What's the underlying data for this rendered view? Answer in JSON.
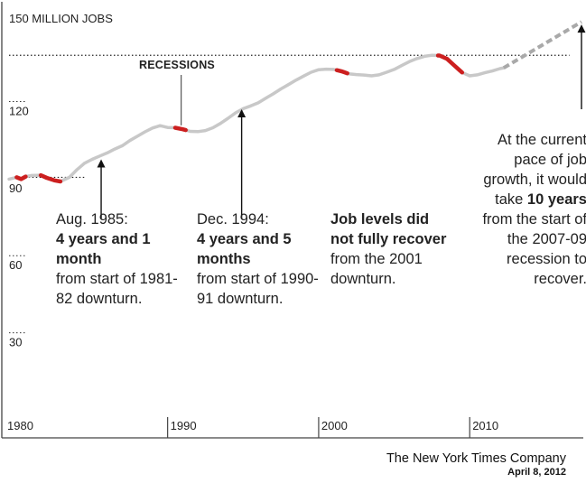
{
  "chart_data": {
    "type": "line",
    "title": "150 MILLION JOBS",
    "xlabel": "",
    "ylabel": "",
    "xlim": [
      1979.5,
      2017.4
    ],
    "ylim": [
      0,
      156
    ],
    "x_ticks": [
      1980,
      1990,
      2000,
      2010
    ],
    "x_tick_labels": [
      "1980",
      "1990",
      "2000",
      "2010"
    ],
    "y_ticks": [
      30,
      60,
      90,
      120
    ],
    "y_tick_labels": [
      "30",
      "60",
      "90",
      "120"
    ],
    "y_top_label": "150 MILLION JOBS",
    "grid": false,
    "colors": {
      "series": "#c8c8c8",
      "recession": "#cc1f1f",
      "projection": "#a9a9a9",
      "ref_line": "#222222",
      "axis": "#444444"
    },
    "series": [
      {
        "values": [
          [
            1979.5,
            89.8
          ],
          [
            1980.0,
            90.5
          ],
          [
            1980.3,
            89.8
          ],
          [
            1980.6,
            90.8
          ],
          [
            1981.0,
            91.2
          ],
          [
            1981.6,
            91.3
          ],
          [
            1982.0,
            90.3
          ],
          [
            1982.5,
            89.3
          ],
          [
            1982.9,
            88.9
          ],
          [
            1983.5,
            90.5
          ],
          [
            1984.0,
            93.5
          ],
          [
            1984.5,
            96.0
          ],
          [
            1985.0,
            97.5
          ],
          [
            1985.6,
            99.0
          ],
          [
            1986.0,
            100.0
          ],
          [
            1986.5,
            101.5
          ],
          [
            1987.0,
            102.8
          ],
          [
            1987.5,
            104.8
          ],
          [
            1988.0,
            106.5
          ],
          [
            1988.5,
            108.2
          ],
          [
            1989.0,
            109.7
          ],
          [
            1989.5,
            110.6
          ],
          [
            1990.0,
            109.9
          ],
          [
            1990.5,
            109.8
          ],
          [
            1991.0,
            109.2
          ],
          [
            1991.5,
            108.4
          ],
          [
            1992.0,
            108.3
          ],
          [
            1992.5,
            108.7
          ],
          [
            1993.0,
            109.8
          ],
          [
            1993.5,
            111.5
          ],
          [
            1994.0,
            113.5
          ],
          [
            1994.5,
            115.6
          ],
          [
            1995.0,
            117.2
          ],
          [
            1995.5,
            118.3
          ],
          [
            1996.0,
            119.5
          ],
          [
            1996.5,
            121.3
          ],
          [
            1997.0,
            123.0
          ],
          [
            1997.5,
            124.9
          ],
          [
            1998.0,
            126.6
          ],
          [
            1998.5,
            128.3
          ],
          [
            1999.0,
            129.9
          ],
          [
            1999.5,
            131.4
          ],
          [
            2000.0,
            132.4
          ],
          [
            2000.5,
            132.6
          ],
          [
            2001.0,
            132.5
          ],
          [
            2001.5,
            131.8
          ],
          [
            2002.0,
            130.8
          ],
          [
            2002.5,
            130.5
          ],
          [
            2003.0,
            130.3
          ],
          [
            2003.5,
            130.0
          ],
          [
            2004.0,
            130.4
          ],
          [
            2004.5,
            131.4
          ],
          [
            2005.0,
            132.5
          ],
          [
            2005.5,
            134.0
          ],
          [
            2006.0,
            135.5
          ],
          [
            2006.5,
            136.7
          ],
          [
            2007.0,
            137.6
          ],
          [
            2007.5,
            138.0
          ],
          [
            2008.0,
            137.9
          ],
          [
            2008.5,
            136.6
          ],
          [
            2009.0,
            133.9
          ],
          [
            2009.5,
            131.3
          ],
          [
            2010.0,
            130.0
          ],
          [
            2010.5,
            130.4
          ],
          [
            2011.0,
            131.2
          ],
          [
            2011.5,
            131.9
          ],
          [
            2012.0,
            132.8
          ],
          [
            2012.25,
            133.1
          ]
        ]
      }
    ],
    "recessions": [
      [
        1980.0,
        1980.6
      ],
      [
        1981.6,
        1982.9
      ],
      [
        1990.5,
        1991.2
      ],
      [
        2001.2,
        2001.9
      ],
      [
        2007.9,
        2009.5
      ]
    ],
    "projection": [
      [
        2012.25,
        133.1
      ],
      [
        2017.4,
        151.0
      ]
    ],
    "reference_lines": [
      {
        "y": 90.5,
        "x": [
          1980.8,
          1984.6
        ]
      },
      {
        "y": 138.0,
        "x": [
          1979.5,
          2016.6
        ]
      }
    ],
    "arrows": [
      {
        "x": 1985.6,
        "y_from": 74.5,
        "y_to": 97.5
      },
      {
        "x": 1994.9,
        "y_from": 74.5,
        "y_to": 117.0
      },
      {
        "x": 2017.4,
        "y_from": 117.0,
        "y_to": 150.0
      }
    ],
    "recession_pointer_x": 1990.9,
    "recessions_label": "RECESSIONS"
  },
  "annotations": {
    "a1985": {
      "head": "Aug. 1985:",
      "bold": "4 years and 1 month",
      "tail": "from start of 1981-82 downturn."
    },
    "a1994": {
      "head": "Dec. 1994:",
      "bold": "4 years and 5 months",
      "tail": "from start of 1990-91 downturn."
    },
    "a2001": {
      "bold": "Job levels did not fully recover",
      "tail": "from the 2001 downturn."
    },
    "a_current": {
      "head": "At the current pace of job growth, it would take",
      "bold": "10 years",
      "tail": "from the start of the 2007-09 recession to recover."
    }
  },
  "credit": {
    "source": "The New York Times Company",
    "date": "April 8, 2012"
  }
}
